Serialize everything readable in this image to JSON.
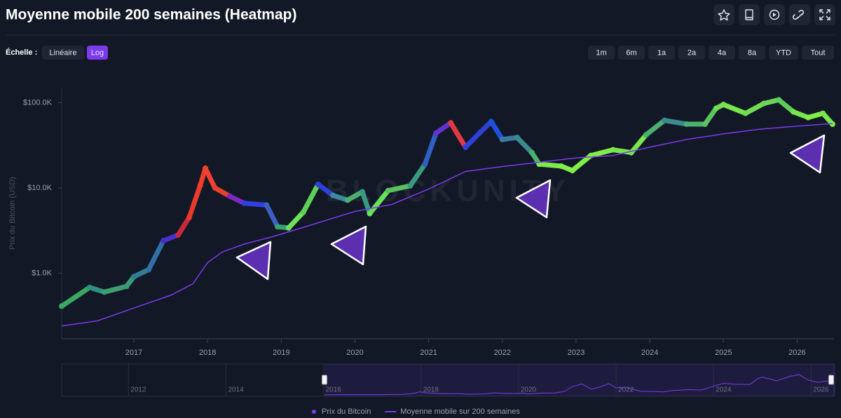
{
  "header": {
    "title": "Moyenne mobile 200 semaines (Heatmap)"
  },
  "scale": {
    "label": "Échelle :",
    "options": [
      "Linéaire",
      "Log"
    ],
    "active": 1
  },
  "ranges": [
    "1m",
    "6m",
    "1a",
    "2a",
    "4a",
    "8a",
    "YTD",
    "Tout"
  ],
  "chart_data": {
    "type": "line",
    "y_label": "Prix du Bitcoin (USD)",
    "watermark": "BLOCKUNITY",
    "log_scale": true,
    "grid": false,
    "legend": "bottom",
    "xlim": [
      2016.02,
      2026.5
    ],
    "xticks": [
      2017,
      2018,
      2019,
      2020,
      2021,
      2022,
      2023,
      2024,
      2025,
      2026
    ],
    "ylim": [
      170,
      150000
    ],
    "yticks": [
      {
        "value": 1000,
        "label": "$1.0K"
      },
      {
        "value": 10000,
        "label": "$10.0K"
      },
      {
        "value": 100000,
        "label": "$100.0K"
      }
    ],
    "series": [
      {
        "name": "Prix du Bitcoin",
        "color": "#7c3aed",
        "x": [
          2016.02,
          2016.4,
          2016.6,
          2016.9,
          2017.0,
          2017.2,
          2017.4,
          2017.6,
          2017.75,
          2017.9,
          2017.97,
          2018.1,
          2018.3,
          2018.5,
          2018.8,
          2018.95,
          2019.1,
          2019.3,
          2019.5,
          2019.7,
          2019.9,
          2020.1,
          2020.2,
          2020.45,
          2020.75,
          2020.95,
          2021.1,
          2021.3,
          2021.5,
          2021.7,
          2021.85,
          2022.0,
          2022.2,
          2022.4,
          2022.5,
          2022.8,
          2022.95,
          2023.2,
          2023.5,
          2023.75,
          2023.95,
          2024.2,
          2024.5,
          2024.75,
          2024.9,
          2025.0,
          2025.3,
          2025.55,
          2025.75,
          2025.95,
          2026.15,
          2026.35,
          2026.48
        ],
        "values": [
          410,
          680,
          600,
          700,
          910,
          1100,
          2400,
          2800,
          4500,
          10700,
          17000,
          10000,
          8000,
          6600,
          6300,
          3500,
          3400,
          5200,
          11000,
          8200,
          7200,
          9000,
          5000,
          9300,
          10600,
          19000,
          44000,
          58000,
          30000,
          45000,
          60000,
          37000,
          39000,
          26000,
          19000,
          18000,
          16000,
          24000,
          28000,
          26000,
          42000,
          62000,
          56000,
          56000,
          86000,
          95000,
          75000,
          98000,
          108000,
          78000,
          67000,
          75000,
          56000
        ],
        "point_colors": [
          "#3aa860",
          "#2f8f80",
          "#3f9e70",
          "#3a9a78",
          "#2f7f90",
          "#3070a8",
          "#4a2fd0",
          "#c8283c",
          "#e83a2a",
          "#f03c2a",
          "#f04030",
          "#e8402c",
          "#7a2ac0",
          "#2e40e0",
          "#3a60c0",
          "#3aa070",
          "#6ee05a",
          "#5ed058",
          "#2e40d8",
          "#3a8aa0",
          "#4ab070",
          "#3a9a80",
          "#6ae05a",
          "#5ac060",
          "#3a9a80",
          "#2f60c0",
          "#6030d0",
          "#e03a40",
          "#2e40e0",
          "#3040d0",
          "#2050e0",
          "#3a7aa0",
          "#3a8a90",
          "#4ab070",
          "#7eea4a",
          "#80ee48",
          "#80ee48",
          "#80ee48",
          "#78e64c",
          "#78e64c",
          "#4ab070",
          "#3a8a90",
          "#4ab070",
          "#5ac060",
          "#70dc50",
          "#78e64c",
          "#70dc50",
          "#6ad458",
          "#60cc5a",
          "#78e64c",
          "#80ee48",
          "#78e64c",
          "#80ee48"
        ]
      },
      {
        "name": "Moyenne mobile sur 200 semaines",
        "color": "#7c3aed",
        "x": [
          2016.02,
          2016.5,
          2017.0,
          2017.5,
          2017.8,
          2018.0,
          2018.2,
          2018.5,
          2018.9,
          2019.5,
          2020.0,
          2020.5,
          2021.0,
          2021.5,
          2022.0,
          2022.5,
          2023.0,
          2023.5,
          2024.0,
          2024.5,
          2025.0,
          2025.5,
          2026.0,
          2026.48
        ],
        "values": [
          240,
          275,
          390,
          550,
          750,
          1330,
          1770,
          2200,
          2700,
          3900,
          5300,
          6400,
          9700,
          15600,
          17800,
          20000,
          22500,
          24000,
          30000,
          37000,
          43000,
          49000,
          53000,
          57000
        ]
      }
    ]
  },
  "navigator": {
    "xlim": [
      2010.63,
      2026.47
    ],
    "xticks": [
      2012,
      2014,
      2016,
      2018,
      2020,
      2022,
      2024,
      2026
    ]
  }
}
